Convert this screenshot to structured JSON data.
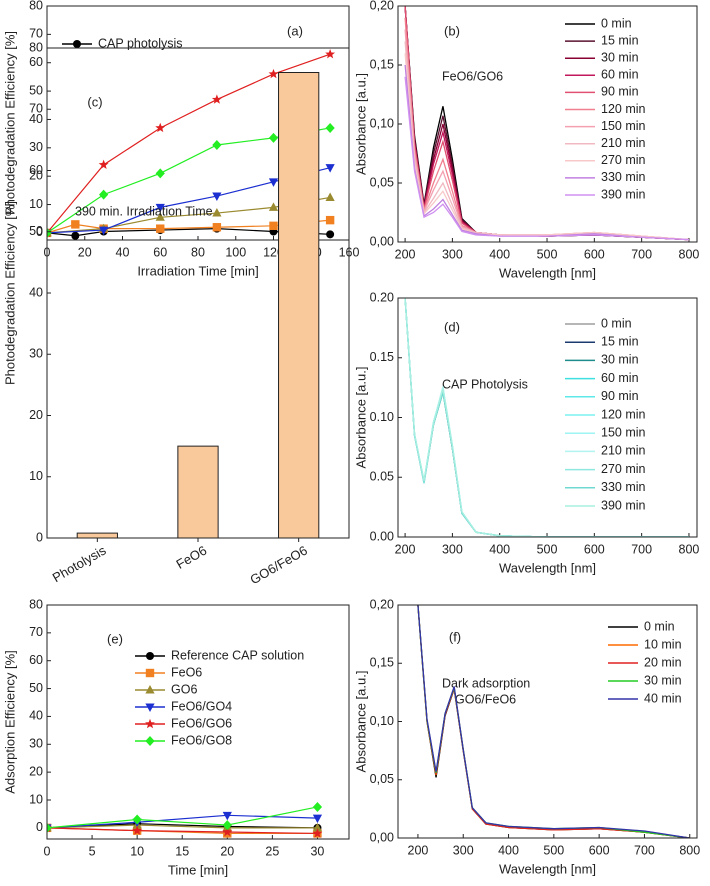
{
  "chart_data": [
    {
      "type": "line",
      "panel_label": "(a)",
      "annotations": [],
      "xlabel": "Irradiation Time [min]",
      "ylabel": "Photodegradation Efficiency [%]",
      "xlim": [
        0,
        160
      ],
      "xticks": [
        0,
        20,
        40,
        60,
        80,
        100,
        120,
        140,
        160
      ],
      "ylim": [
        -2.5,
        80
      ],
      "yticks": [
        0,
        10,
        20,
        30,
        40,
        50,
        60,
        70,
        80
      ],
      "series": [
        {
          "name": "CAP photolysis",
          "color": "#000000",
          "marker": "circle",
          "x": [
            0,
            15,
            30,
            60,
            90,
            120,
            150
          ],
          "values": [
            0,
            -1,
            0.5,
            1,
            1.5,
            0.5,
            -0.5
          ]
        },
        {
          "color": "#f08020",
          "marker": "square",
          "x": [
            0,
            15,
            30,
            60,
            90,
            120,
            150
          ],
          "values": [
            0,
            3,
            1.5,
            1.5,
            2,
            2.5,
            4.5
          ]
        },
        {
          "color": "#9a8a30",
          "marker": "triangle-up",
          "x": [
            0,
            30,
            60,
            90,
            120,
            150
          ],
          "values": [
            0,
            1.5,
            5.5,
            7,
            9,
            12.5
          ]
        },
        {
          "color": "#1c2fd0",
          "marker": "triangle-down",
          "x": [
            0,
            30,
            60,
            90,
            120,
            150
          ],
          "values": [
            0,
            1,
            9,
            13,
            18,
            23
          ]
        },
        {
          "color": "#e02020",
          "marker": "star",
          "x": [
            0,
            30,
            60,
            90,
            120,
            150
          ],
          "values": [
            0,
            24,
            37,
            47,
            56,
            63
          ]
        },
        {
          "color": "#22ee22",
          "marker": "diamond",
          "x": [
            0,
            30,
            60,
            90,
            120,
            150
          ],
          "values": [
            0,
            13.5,
            21,
            31,
            33.5,
            37
          ]
        }
      ]
    },
    {
      "type": "line",
      "panel_label": "(b)",
      "annotations": [
        "FeO6/GO6"
      ],
      "xlabel": "Wavelength [nm]",
      "ylabel": "Absorbance [a.u.]",
      "xlim": [
        185,
        817
      ],
      "xticks": [
        200,
        300,
        400,
        500,
        600,
        700,
        800
      ],
      "ylim": [
        0,
        0.2
      ],
      "yticks": [
        {
          "value": 0,
          "label": "0,00"
        },
        {
          "value": 0.05,
          "label": "0,05"
        },
        {
          "value": 0.1,
          "label": "0,10"
        },
        {
          "value": 0.15,
          "label": "0,15"
        },
        {
          "value": 0.2,
          "label": "0,20"
        }
      ],
      "x": [
        200,
        220,
        240,
        260,
        280,
        300,
        320,
        350,
        400,
        500,
        600,
        700,
        800
      ],
      "series": [
        {
          "name": "0 min",
          "color": "#000000",
          "values": [
            0.2,
            0.09,
            0.032,
            0.08,
            0.115,
            0.07,
            0.02,
            0.008,
            0.006,
            0.005,
            0.006,
            0.004,
            0.002
          ]
        },
        {
          "name": "15 min",
          "color": "#5a1030",
          "values": [
            0.2,
            0.088,
            0.031,
            0.075,
            0.107,
            0.065,
            0.019,
            0.008,
            0.006,
            0.005,
            0.006,
            0.004,
            0.002
          ]
        },
        {
          "name": "30 min",
          "color": "#8b0033",
          "values": [
            0.2,
            0.086,
            0.03,
            0.07,
            0.1,
            0.061,
            0.018,
            0.008,
            0.006,
            0.005,
            0.006,
            0.004,
            0.002
          ]
        },
        {
          "name": "60 min",
          "color": "#c2185b",
          "values": [
            0.2,
            0.084,
            0.029,
            0.066,
            0.093,
            0.057,
            0.017,
            0.008,
            0.006,
            0.005,
            0.007,
            0.004,
            0.002
          ]
        },
        {
          "name": "90 min",
          "color": "#e05070",
          "values": [
            0.2,
            0.082,
            0.028,
            0.06,
            0.085,
            0.052,
            0.016,
            0.008,
            0.006,
            0.005,
            0.007,
            0.004,
            0.002
          ]
        },
        {
          "name": "120 min",
          "color": "#f08090",
          "values": [
            0.19,
            0.078,
            0.027,
            0.05,
            0.07,
            0.043,
            0.014,
            0.008,
            0.006,
            0.006,
            0.008,
            0.005,
            0.002
          ]
        },
        {
          "name": "150 min",
          "color": "#f4a0b0",
          "values": [
            0.18,
            0.075,
            0.026,
            0.044,
            0.06,
            0.037,
            0.013,
            0.008,
            0.006,
            0.006,
            0.008,
            0.005,
            0.002
          ]
        },
        {
          "name": "210 min",
          "color": "#f0b8c0",
          "values": [
            0.17,
            0.07,
            0.025,
            0.037,
            0.05,
            0.031,
            0.012,
            0.008,
            0.006,
            0.006,
            0.008,
            0.005,
            0.002
          ]
        },
        {
          "name": "270 min",
          "color": "#f8c8c8",
          "values": [
            0.16,
            0.066,
            0.024,
            0.033,
            0.043,
            0.027,
            0.011,
            0.007,
            0.006,
            0.006,
            0.008,
            0.005,
            0.002
          ]
        },
        {
          "name": "330 min",
          "color": "#c080e0",
          "values": [
            0.15,
            0.062,
            0.022,
            0.028,
            0.036,
            0.023,
            0.01,
            0.007,
            0.005,
            0.005,
            0.007,
            0.004,
            0.002
          ]
        },
        {
          "name": "390 min",
          "color": "#d090f0",
          "values": [
            0.14,
            0.06,
            0.021,
            0.025,
            0.032,
            0.021,
            0.009,
            0.006,
            0.005,
            0.005,
            0.006,
            0.004,
            0.002
          ]
        }
      ]
    },
    {
      "type": "bar",
      "panel_label": "(c)",
      "annotations": [
        "390 min. Irradiation Time"
      ],
      "ylabel": "Photodegradation Efficiency [%]",
      "categories": [
        "Photolysis",
        "FeO6",
        "GO6/FeO6"
      ],
      "values": [
        0.8,
        15,
        76
      ],
      "color": "#f9c89b",
      "ylim": [
        0,
        80
      ],
      "yticks": [
        0,
        10,
        20,
        30,
        40,
        50,
        60,
        70,
        80
      ]
    },
    {
      "type": "line",
      "panel_label": "(d)",
      "annotations": [
        "CAP Photolysis"
      ],
      "xlabel": "Wavelength [nm]",
      "ylabel": "Absorbance [a.u.]",
      "xlim": [
        185,
        817
      ],
      "xticks": [
        200,
        300,
        400,
        500,
        600,
        700,
        800
      ],
      "ylim": [
        0,
        0.2
      ],
      "yticks": [
        {
          "value": 0,
          "label": "0.00"
        },
        {
          "value": 0.05,
          "label": "0.05"
        },
        {
          "value": 0.1,
          "label": "0.10"
        },
        {
          "value": 0.15,
          "label": "0.15"
        },
        {
          "value": 0.2,
          "label": "0.20"
        }
      ],
      "x": [
        200,
        220,
        240,
        260,
        280,
        300,
        320,
        350,
        400,
        500,
        600,
        700,
        800
      ],
      "series": [
        {
          "name": "0 min",
          "color": "#9e9e9e",
          "values": [
            0.2,
            0.085,
            0.046,
            0.095,
            0.123,
            0.075,
            0.02,
            0.004,
            0.001,
            0,
            0,
            0,
            0
          ]
        },
        {
          "name": "15 min",
          "color": "#1b3b6f",
          "values": [
            0.2,
            0.085,
            0.046,
            0.094,
            0.122,
            0.074,
            0.02,
            0.004,
            0.001,
            0,
            0,
            0,
            0
          ]
        },
        {
          "name": "30 min",
          "color": "#1e8c8c",
          "values": [
            0.2,
            0.085,
            0.045,
            0.094,
            0.121,
            0.074,
            0.02,
            0.004,
            0.001,
            0,
            0,
            0,
            0
          ]
        },
        {
          "name": "60 min",
          "color": "#3ee0e0",
          "values": [
            0.2,
            0.086,
            0.046,
            0.096,
            0.125,
            0.076,
            0.021,
            0.004,
            0.001,
            0,
            0,
            0,
            0
          ]
        },
        {
          "name": "90 min",
          "color": "#5fe8e8",
          "values": [
            0.2,
            0.086,
            0.047,
            0.096,
            0.124,
            0.076,
            0.021,
            0.004,
            0.001,
            0,
            0,
            0,
            0
          ]
        },
        {
          "name": "120 min",
          "color": "#7df0f0",
          "values": [
            0.2,
            0.085,
            0.046,
            0.095,
            0.123,
            0.075,
            0.02,
            0.004,
            0.001,
            0,
            0,
            0,
            0
          ]
        },
        {
          "name": "150 min",
          "color": "#9ef3f3",
          "values": [
            0.2,
            0.085,
            0.045,
            0.094,
            0.122,
            0.075,
            0.02,
            0.004,
            0.001,
            0,
            0,
            0,
            0
          ]
        },
        {
          "name": "210 min",
          "color": "#b2f5f0",
          "values": [
            0.2,
            0.086,
            0.046,
            0.096,
            0.126,
            0.077,
            0.021,
            0.004,
            0.001,
            0,
            0,
            0,
            0
          ]
        },
        {
          "name": "270 min",
          "color": "#8ee8e0",
          "values": [
            0.2,
            0.085,
            0.046,
            0.095,
            0.123,
            0.075,
            0.02,
            0.004,
            0.001,
            0,
            0,
            0,
            0
          ]
        },
        {
          "name": "330 min",
          "color": "#6fd8d0",
          "values": [
            0.2,
            0.085,
            0.046,
            0.094,
            0.121,
            0.074,
            0.02,
            0.004,
            0.001,
            0,
            0,
            0,
            0
          ]
        },
        {
          "name": "390 min",
          "color": "#a8efe0",
          "values": [
            0.2,
            0.086,
            0.047,
            0.095,
            0.124,
            0.076,
            0.021,
            0.004,
            0.001,
            0,
            0,
            0,
            0
          ]
        }
      ]
    },
    {
      "type": "line",
      "panel_label": "(e)",
      "annotations": [],
      "xlabel": "Time [min]",
      "ylabel": "Adsorption Efficiency [%]",
      "xlim": [
        0,
        33.5
      ],
      "xticks": [
        0,
        5,
        10,
        15,
        20,
        25,
        30
      ],
      "ylim": [
        -4,
        80
      ],
      "yticks": [
        0,
        10,
        20,
        30,
        40,
        50,
        60,
        70,
        80
      ],
      "series": [
        {
          "name": "Reference CAP solution",
          "color": "#000000",
          "marker": "circle",
          "x": [
            0,
            10,
            20,
            30
          ],
          "values": [
            0,
            1.5,
            0.5,
            0
          ]
        },
        {
          "name": "FeO6",
          "color": "#f08020",
          "marker": "square",
          "x": [
            0,
            10,
            20,
            30
          ],
          "values": [
            0,
            -1,
            -2,
            -2
          ]
        },
        {
          "name": "GO6",
          "color": "#9a8a30",
          "marker": "triangle-up",
          "x": [
            0,
            10,
            20,
            30
          ],
          "values": [
            0,
            1,
            0,
            0
          ]
        },
        {
          "name": "FeO6/GO4",
          "color": "#1c2fd0",
          "marker": "triangle-down",
          "x": [
            0,
            10,
            20,
            30
          ],
          "values": [
            0,
            2,
            4.5,
            3.5
          ]
        },
        {
          "name": "FeO6/GO6",
          "color": "#e02020",
          "marker": "star",
          "x": [
            0,
            10,
            20,
            30
          ],
          "values": [
            0,
            -1,
            -1.5,
            -2
          ]
        },
        {
          "name": "FeO6/GO8",
          "color": "#22ee22",
          "marker": "diamond",
          "x": [
            0,
            10,
            20,
            30
          ],
          "values": [
            0,
            3,
            1,
            7.5
          ]
        }
      ]
    },
    {
      "type": "line",
      "panel_label": "(f)",
      "annotations": [
        "Dark adsorption",
        "GO6/FeO6"
      ],
      "xlabel": "Wavelength [nm]",
      "ylabel": "Absorbance [a.u.]",
      "xlim": [
        156,
        816
      ],
      "xticks": [
        200,
        300,
        400,
        500,
        600,
        700,
        800
      ],
      "ylim": [
        0,
        0.2
      ],
      "yticks": [
        {
          "value": 0,
          "label": "0,00"
        },
        {
          "value": 0.05,
          "label": "0,05"
        },
        {
          "value": 0.1,
          "label": "0,10"
        },
        {
          "value": 0.15,
          "label": "0,15"
        },
        {
          "value": 0.2,
          "label": "0,20"
        }
      ],
      "x": [
        200,
        220,
        240,
        260,
        280,
        300,
        320,
        350,
        400,
        500,
        600,
        700,
        800
      ],
      "series": [
        {
          "name": "0 min",
          "color": "#000000",
          "values": [
            0.2,
            0.1,
            0.052,
            0.105,
            0.128,
            0.075,
            0.025,
            0.012,
            0.009,
            0.007,
            0.008,
            0.005,
            0
          ]
        },
        {
          "name": "10 min",
          "color": "#ff6a00",
          "values": [
            0.2,
            0.1,
            0.054,
            0.106,
            0.129,
            0.076,
            0.025,
            0.012,
            0.009,
            0.007,
            0.008,
            0.005,
            0
          ]
        },
        {
          "name": "20 min",
          "color": "#e02020",
          "values": [
            0.2,
            0.101,
            0.055,
            0.106,
            0.128,
            0.075,
            0.025,
            0.012,
            0.009,
            0.007,
            0.008,
            0.005,
            0
          ]
        },
        {
          "name": "30 min",
          "color": "#22cc22",
          "values": [
            0.2,
            0.101,
            0.056,
            0.107,
            0.129,
            0.076,
            0.026,
            0.013,
            0.01,
            0.008,
            0.009,
            0.005,
            0
          ]
        },
        {
          "name": "40 min",
          "color": "#3333aa",
          "values": [
            0.2,
            0.102,
            0.057,
            0.107,
            0.13,
            0.076,
            0.026,
            0.013,
            0.01,
            0.008,
            0.009,
            0.006,
            0
          ]
        }
      ]
    }
  ]
}
